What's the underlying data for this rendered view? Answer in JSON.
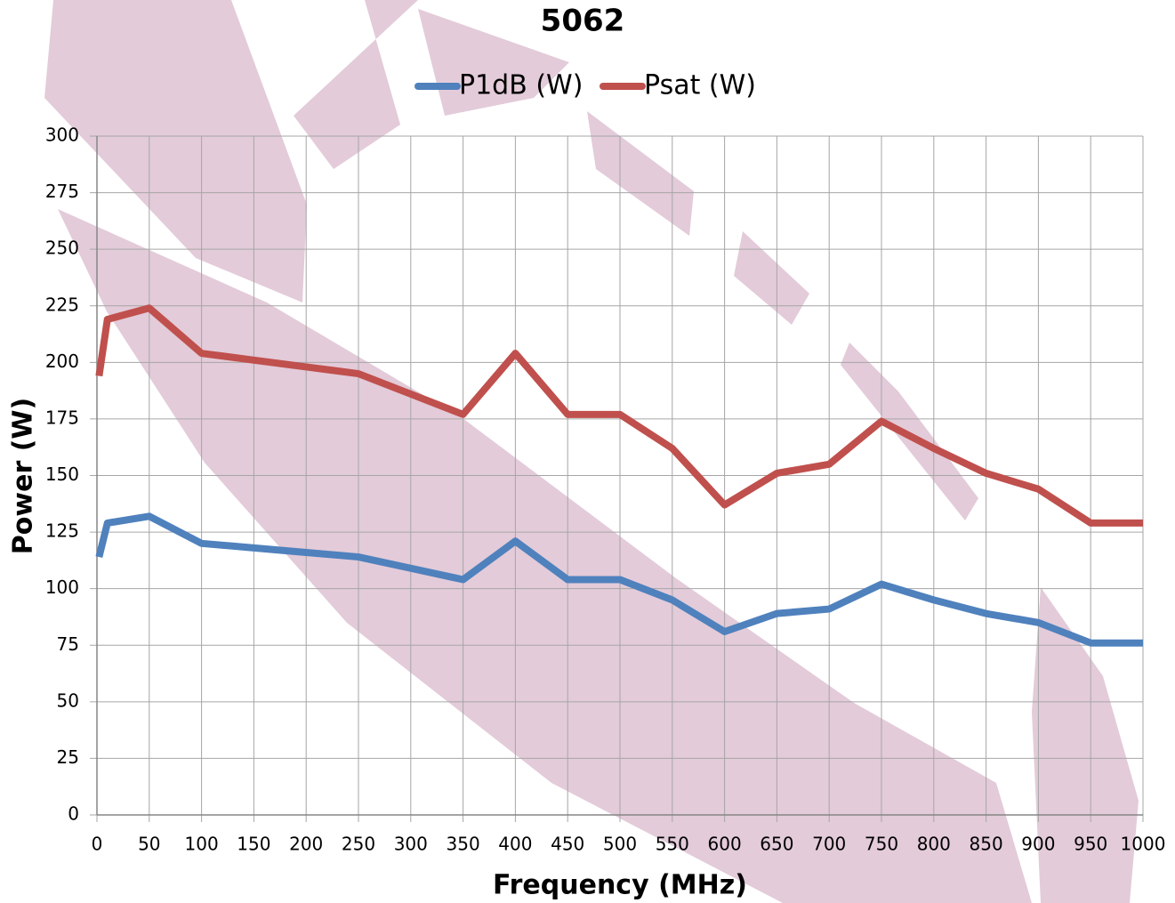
{
  "chart_data": {
    "type": "line",
    "title": "5062",
    "x_label": "Frequency (MHz)",
    "y_label": "Power (W)",
    "x": [
      2,
      10,
      50,
      100,
      150,
      200,
      250,
      300,
      350,
      400,
      450,
      500,
      550,
      600,
      650,
      700,
      750,
      800,
      850,
      900,
      950,
      1000
    ],
    "series": [
      {
        "name": "P1dB (W)",
        "color": "#4f81bd",
        "values": [
          114,
          129,
          132,
          120,
          118,
          116,
          114,
          109,
          104,
          121,
          104,
          104,
          95,
          81,
          89,
          91,
          102,
          95,
          89,
          85,
          76,
          76
        ]
      },
      {
        "name": "Psat (W)",
        "color": "#c0504d",
        "values": [
          194,
          219,
          224,
          204,
          201,
          198,
          195,
          186,
          177,
          204,
          177,
          177,
          162,
          137,
          151,
          155,
          174,
          162,
          151,
          144,
          129,
          129
        ]
      }
    ],
    "xlim": [
      0,
      1000
    ],
    "xticks": [
      0,
      50,
      100,
      150,
      200,
      250,
      300,
      350,
      400,
      450,
      500,
      550,
      600,
      650,
      700,
      750,
      800,
      850,
      900,
      950,
      1000
    ],
    "ylim": [
      0,
      300
    ],
    "yticks": [
      0,
      25,
      50,
      75,
      100,
      125,
      150,
      175,
      200,
      225,
      250,
      275,
      300
    ],
    "grid": true,
    "legend": "top"
  }
}
